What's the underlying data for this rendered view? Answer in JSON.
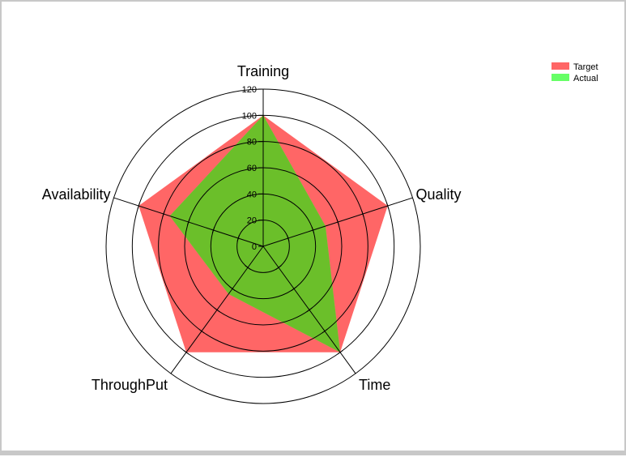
{
  "chart_data": {
    "type": "radar",
    "categories": [
      "Training",
      "Quality",
      "Time",
      "ThroughPut",
      "Availability"
    ],
    "series": [
      {
        "name": "Target",
        "values": [
          100,
          100,
          100,
          100,
          100
        ],
        "color": "#ff6666"
      },
      {
        "name": "Actual",
        "values": [
          100,
          50,
          100,
          45,
          75
        ],
        "color": "#66ff66"
      }
    ],
    "overlap_color": "#6bbf2a",
    "rlim": [
      0,
      120
    ],
    "ticks": [
      "0",
      "20",
      "40",
      "60",
      "80",
      "100",
      "120"
    ],
    "grid": true,
    "legend_position": "top-right"
  }
}
